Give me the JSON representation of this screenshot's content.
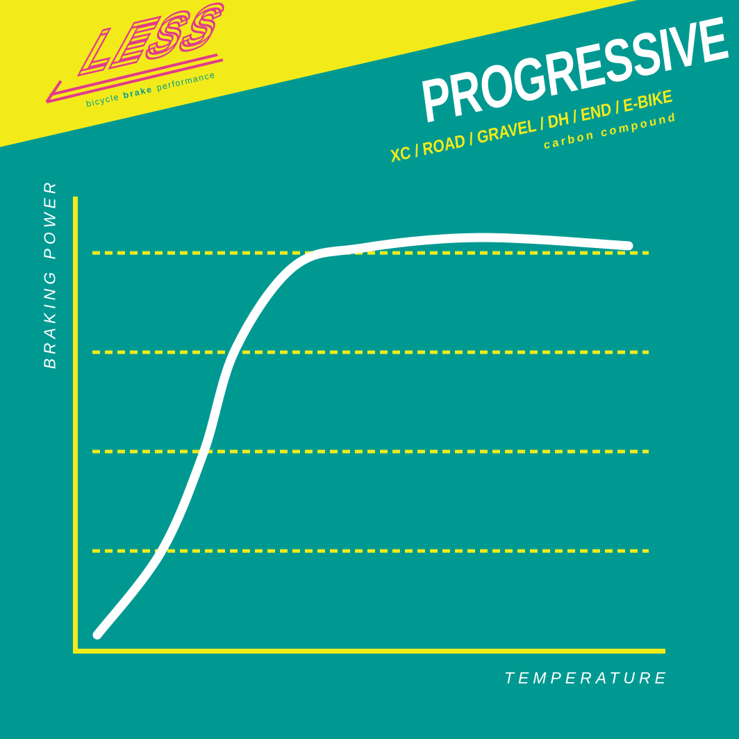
{
  "colors": {
    "background_teal": "#009992",
    "accent_yellow": "#F3EB19",
    "brand_pink": "#E13A8C",
    "text_white": "#FFFFFF"
  },
  "logo": {
    "wordmark": "LESS",
    "tagline": {
      "word1": "bicycle",
      "word2": "brake",
      "word3": "performance"
    }
  },
  "header": {
    "title": "PROGRESSIVE",
    "disciplines": "XC / ROAD / GRAVEL / DH / END / E-BIKE",
    "compound": "carbon compound"
  },
  "chart_data": {
    "type": "line",
    "title": "",
    "xlabel": "TEMPERATURE",
    "ylabel": "BRAKING POWER",
    "xlim": [
      0,
      1
    ],
    "ylim": [
      0,
      1.05
    ],
    "x_axis_ticks": "none",
    "y_axis_ticks": "none",
    "legend": "none",
    "grid_style": "horizontal dashed yellow lines",
    "gridlines_y_normalized": [
      0.243,
      0.483,
      0.723,
      0.963
    ],
    "x_normalized": [
      0.0,
      0.12,
      0.2,
      0.26,
      0.37,
      0.5,
      0.72,
      1.0
    ],
    "y_normalized": [
      0.04,
      0.24,
      0.48,
      0.73,
      0.93,
      0.975,
      1.0,
      0.98
    ],
    "line_color": "#FFFFFF",
    "grid_color": "#F3EB19",
    "axis_color": "#F3EB19",
    "description": "S-shaped (sigmoid) curve: braking power rises steeply with temperature then plateaus just above the top gridline"
  }
}
